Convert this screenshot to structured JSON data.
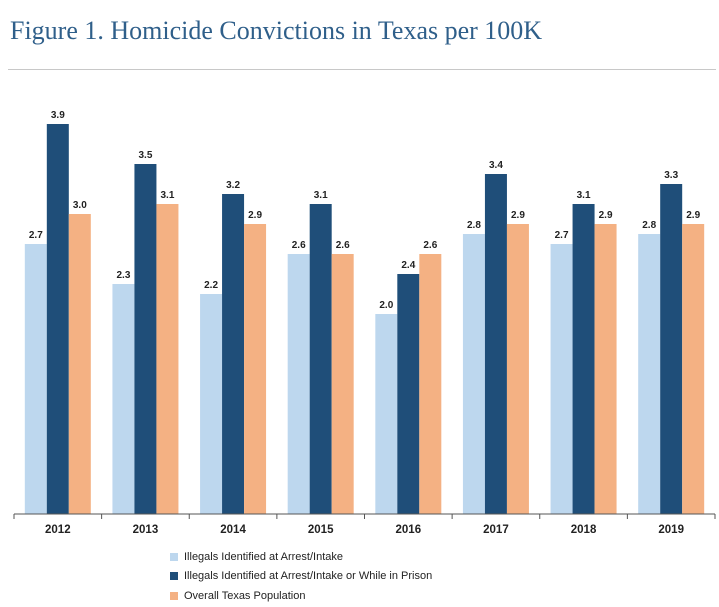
{
  "title": "Figure 1. Homicide Convictions in Texas per 100K",
  "chart_data": {
    "type": "bar",
    "title": "Figure 1. Homicide Convictions in Texas per 100K",
    "xlabel": "",
    "ylabel": "",
    "ylim": [
      0,
      4.0
    ],
    "grid": false,
    "legend_position": "bottom",
    "categories": [
      "2012",
      "2013",
      "2014",
      "2015",
      "2016",
      "2017",
      "2018",
      "2019"
    ],
    "series": [
      {
        "name": "Illegals Identified at Arrest/Intake",
        "color": "#bdd7ee",
        "values": [
          2.7,
          2.3,
          2.2,
          2.6,
          2.0,
          2.8,
          2.7,
          2.8
        ],
        "labels": [
          "2.7",
          "2.3",
          "2.2",
          "2.6",
          "2.0",
          "2.8",
          "2.7",
          "2.8"
        ]
      },
      {
        "name": "Illegals Identified at Arrest/Intake or While in Prison",
        "color": "#1f4e79",
        "values": [
          3.9,
          3.5,
          3.2,
          3.1,
          2.4,
          3.4,
          3.1,
          3.3
        ],
        "labels": [
          "3.9",
          "3.5",
          "3.2",
          "3.1",
          "2.4",
          "3.4",
          "3.1",
          "3.3"
        ]
      },
      {
        "name": "Overall Texas Population",
        "color": "#f4b183",
        "values": [
          3.0,
          3.1,
          2.9,
          2.6,
          2.6,
          2.9,
          2.9,
          2.9
        ],
        "labels": [
          "3.0",
          "3.1",
          "2.9",
          "2.6",
          "2.6",
          "2.9",
          "2.9",
          "2.9"
        ]
      }
    ]
  }
}
